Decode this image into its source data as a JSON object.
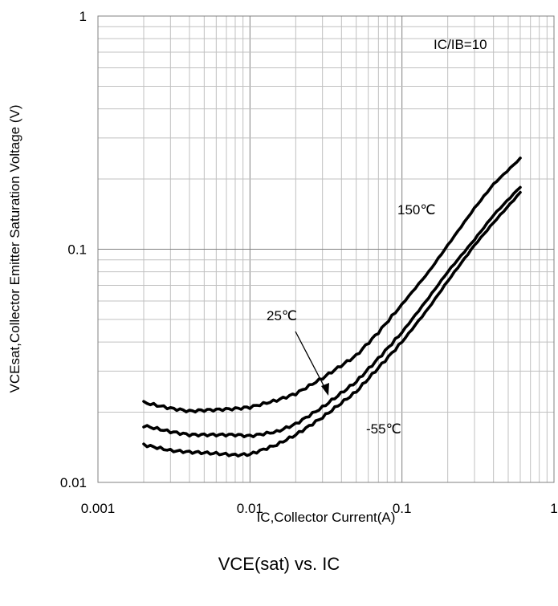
{
  "caption": "VCE(sat) vs. IC",
  "chart_data": {
    "type": "line",
    "title": "",
    "xlabel": "IC,Collector Current(A)",
    "ylabel": "VCEsat,Collector Emitter Saturation Voltage  (V)",
    "xscale": "log",
    "yscale": "log",
    "xlim": [
      0.001,
      1
    ],
    "ylim": [
      0.01,
      1
    ],
    "grid": true,
    "x_tick_labels": [
      "0.001",
      "0.01",
      "0.1",
      "1"
    ],
    "y_tick_labels": [
      "0.01",
      "0.1",
      "1"
    ],
    "annotations": [
      {
        "text": "IC/IB=10"
      },
      {
        "text": "150℃"
      },
      {
        "text": "25℃"
      },
      {
        "text": "-55℃"
      }
    ],
    "series": [
      {
        "name": "150℃",
        "x": [
          0.002,
          0.003,
          0.004,
          0.005,
          0.006,
          0.008,
          0.01,
          0.015,
          0.02,
          0.03,
          0.05,
          0.07,
          0.1,
          0.15,
          0.2,
          0.3,
          0.4,
          0.6
        ],
        "y": [
          0.022,
          0.0208,
          0.0202,
          0.0204,
          0.0205,
          0.0207,
          0.021,
          0.0225,
          0.024,
          0.028,
          0.035,
          0.044,
          0.058,
          0.08,
          0.104,
          0.15,
          0.19,
          0.245
        ]
      },
      {
        "name": "25℃",
        "x": [
          0.002,
          0.003,
          0.004,
          0.005,
          0.006,
          0.008,
          0.01,
          0.015,
          0.02,
          0.03,
          0.05,
          0.07,
          0.1,
          0.15,
          0.2,
          0.3,
          0.4,
          0.6
        ],
        "y": [
          0.0175,
          0.0165,
          0.016,
          0.016,
          0.016,
          0.016,
          0.0158,
          0.0165,
          0.0178,
          0.021,
          0.027,
          0.034,
          0.044,
          0.062,
          0.08,
          0.11,
          0.14,
          0.185
        ]
      },
      {
        "name": "-55℃",
        "x": [
          0.002,
          0.003,
          0.004,
          0.005,
          0.006,
          0.008,
          0.01,
          0.015,
          0.02,
          0.03,
          0.05,
          0.07,
          0.1,
          0.15,
          0.2,
          0.3,
          0.4,
          0.6
        ],
        "y": [
          0.0145,
          0.0137,
          0.0135,
          0.0134,
          0.0133,
          0.0131,
          0.0132,
          0.0145,
          0.016,
          0.019,
          0.0245,
          0.031,
          0.04,
          0.056,
          0.073,
          0.104,
          0.13,
          0.175
        ]
      }
    ]
  }
}
